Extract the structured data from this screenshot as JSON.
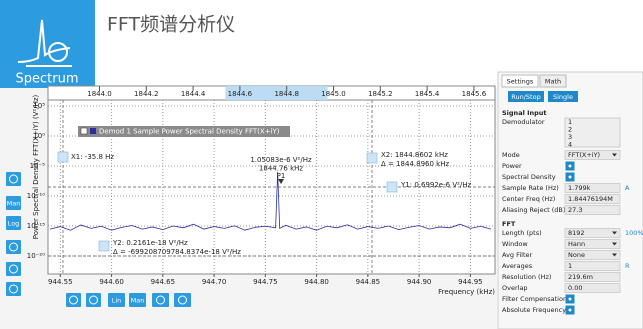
{
  "header": {
    "title": "FFT频谱分析仪",
    "logo": "Spectrum"
  },
  "chart_data": {
    "type": "line",
    "log_y": true,
    "grid": true,
    "ylabel": "Power Spectral Density FFT(X+iY) (V²/Hz)",
    "xlabel": "Frequency (kHz)",
    "xlim": [
      944.538,
      944.974
    ],
    "xticks": [
      944.55,
      {
        "value": 944.6,
        "label": "944.60"
      },
      944.65,
      {
        "value": 944.7,
        "label": "944.70"
      },
      944.75,
      {
        "value": 944.8,
        "label": "944.80"
      },
      944.85,
      {
        "value": 944.9,
        "label": "944.90"
      },
      944.95
    ],
    "ylim": [
      1e-23,
      1000000
    ],
    "yticks": [
      {
        "value": 100000,
        "label": "10⁵"
      },
      {
        "value": 1,
        "label": "10⁰"
      },
      {
        "value": 1e-05,
        "label": "10⁻⁵"
      },
      {
        "value": 1e-10,
        "label": "10⁻¹⁰"
      },
      {
        "value": 1e-15,
        "label": "10⁻¹⁵"
      },
      {
        "value": 1e-20,
        "label": "10⁻²⁰"
      }
    ],
    "overview": {
      "xlim": [
        1843.78,
        1845.69
      ],
      "window": [
        1844.538,
        1844.974
      ],
      "xticks": [
        {
          "value": 1844,
          "label": "1844.0"
        },
        1844.2,
        1844.4,
        1844.6,
        1844.8,
        {
          "value": 1845,
          "label": "1845.0"
        },
        1845.2,
        1845.4,
        1845.6
      ]
    },
    "x": [
      944.54,
      944.55,
      944.56,
      944.57,
      944.58,
      944.59,
      944.6,
      944.61,
      944.62,
      944.63,
      944.64,
      944.65,
      944.66,
      944.67,
      944.68,
      944.69,
      944.7,
      944.71,
      944.72,
      944.73,
      944.74,
      944.75,
      944.76,
      944.762,
      944.764,
      944.77,
      944.78,
      944.79,
      944.8,
      944.81,
      944.82,
      944.83,
      944.84,
      944.85,
      944.86,
      944.87,
      944.88,
      944.89,
      944.9,
      944.91,
      944.92,
      944.93,
      944.94,
      944.95,
      944.96,
      944.97
    ],
    "series": [
      {
        "name": "Demod 1 Sample Power Spectral Density FFT(X+iY)",
        "color": "#2b2f9e",
        "values": [
          3e-16,
          8e-16,
          2e-16,
          1.5e-15,
          4e-16,
          9e-16,
          2e-16,
          6e-16,
          1.2e-15,
          3e-16,
          7e-16,
          2.5e-16,
          1e-15,
          5e-16,
          2e-15,
          3e-16,
          8e-16,
          4e-16,
          1.1e-15,
          2e-16,
          6e-16,
          9e-16,
          5e-16,
          1.05083e-06,
          4e-16,
          1.3e-15,
          3e-16,
          7e-16,
          2e-16,
          9e-16,
          5e-16,
          1.6e-15,
          3e-16,
          8e-16,
          4e-16,
          1e-15,
          2.5e-16,
          6e-16,
          1.2e-15,
          3e-16,
          7e-16,
          5e-16,
          2e-15,
          4e-16,
          9e-16,
          3e-16
        ]
      }
    ],
    "annotations": [
      "X1: -35.8 Hz",
      "1.05083e-6 V²/Hz",
      "1844.76 kHz",
      "P1",
      "X2: 1844.8602 kHz",
      "Δ = 1844.8960 kHz",
      "Y1: 0.6992e-6 V²/Hz",
      "Y2: 0.2161e-18 V²/Hz",
      "Δ = -699208709784.8374e-18 V²/Hz"
    ]
  },
  "toolbar": {
    "left": [
      "Man",
      "Log"
    ],
    "bottom": [
      "Lin",
      "Man"
    ]
  },
  "sidebar": {
    "tabs": [
      "Settings",
      "Math"
    ],
    "buttons": [
      "Run/Stop",
      "Single"
    ],
    "sections": [
      {
        "title": "Signal Input",
        "rows": [
          {
            "label": "Demodulator",
            "options": [
              "1",
              "2",
              "3",
              "4"
            ]
          },
          {
            "label": "Mode",
            "value": "FFT(X+iY)",
            "dropdown": true
          },
          {
            "label": "Power",
            "checked": true
          },
          {
            "label": "Spectral Density",
            "checked": true
          },
          {
            "label": "Sample Rate (Hz)",
            "value": "1.799k",
            "extra": "A"
          },
          {
            "label": "Center Freq (Hz)",
            "value": "1.84476194M"
          },
          {
            "label": "Aliasing Reject (dB)",
            "value": "27.3"
          }
        ]
      },
      {
        "title": "FFT",
        "rows": [
          {
            "label": "Length (pts)",
            "value": "8192",
            "dropdown": true,
            "extra": "100%"
          },
          {
            "label": "Window",
            "value": "Hann",
            "dropdown": true
          },
          {
            "label": "Avg Filter",
            "value": "None",
            "dropdown": true
          },
          {
            "label": "Averages",
            "value": "1",
            "extra": "R"
          },
          {
            "label": "Resolution (Hz)",
            "value": "219.6m"
          },
          {
            "label": "Overlap",
            "value": "0.00"
          },
          {
            "label": "Filter Compensation",
            "checked": true
          },
          {
            "label": "Absolute Frequency",
            "checked": true
          }
        ]
      }
    ]
  }
}
